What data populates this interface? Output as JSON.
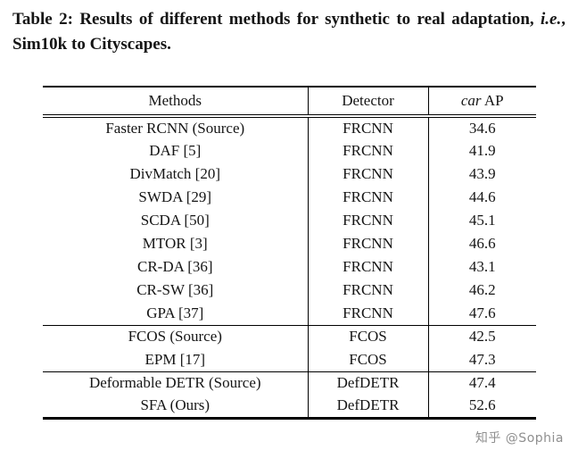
{
  "caption": {
    "part1": "Table 2: Results of different methods for synthetic to real adaptation, ",
    "ie": "i.e.",
    "part2": ", Sim10k to Cityscapes."
  },
  "table": {
    "headers": {
      "methods": "Methods",
      "detector": "Detector",
      "ap_italic": "car",
      "ap_rest": " AP"
    },
    "groups": [
      {
        "rows": [
          {
            "method": "Faster RCNN (Source)",
            "detector": "FRCNN",
            "ap": "34.6"
          },
          {
            "method": "DAF [5]",
            "detector": "FRCNN",
            "ap": "41.9"
          },
          {
            "method": "DivMatch [20]",
            "detector": "FRCNN",
            "ap": "43.9"
          },
          {
            "method": "SWDA [29]",
            "detector": "FRCNN",
            "ap": "44.6"
          },
          {
            "method": "SCDA [50]",
            "detector": "FRCNN",
            "ap": "45.1"
          },
          {
            "method": "MTOR [3]",
            "detector": "FRCNN",
            "ap": "46.6"
          },
          {
            "method": "CR-DA [36]",
            "detector": "FRCNN",
            "ap": "43.1"
          },
          {
            "method": "CR-SW [36]",
            "detector": "FRCNN",
            "ap": "46.2"
          },
          {
            "method": "GPA [37]",
            "detector": "FRCNN",
            "ap": "47.6"
          }
        ]
      },
      {
        "rows": [
          {
            "method": "FCOS (Source)",
            "detector": "FCOS",
            "ap": "42.5"
          },
          {
            "method": "EPM [17]",
            "detector": "FCOS",
            "ap": "47.3"
          }
        ]
      },
      {
        "rows": [
          {
            "method": "Deformable DETR (Source)",
            "detector": "DefDETR",
            "ap": "47.4"
          },
          {
            "method": "SFA (Ours)",
            "detector": "DefDETR",
            "ap": "52.6"
          }
        ]
      }
    ]
  },
  "watermark": "知乎 @Sophia"
}
